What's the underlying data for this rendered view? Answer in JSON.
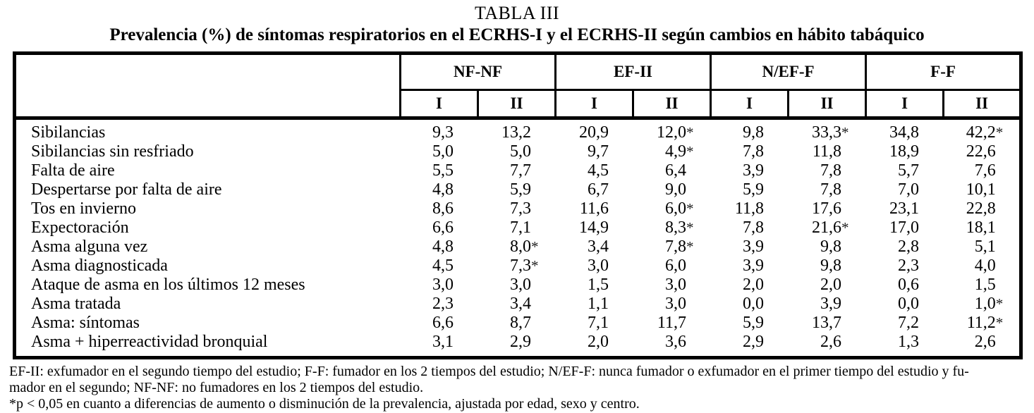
{
  "title": "TABLA III",
  "subtitle": "Prevalencia (%) de síntomas respiratorios en el ECRHS-I y el ECRHS-II según cambios en hábito tabáquico",
  "table": {
    "groups": [
      "NF-NF",
      "EF-II",
      "N/EF-F",
      "F-F"
    ],
    "subheaders": [
      "I",
      "II",
      "I",
      "II",
      "I",
      "II",
      "I",
      "II"
    ],
    "rows": [
      {
        "label": "Sibilancias",
        "values": [
          "9,3",
          "13,2",
          "20,9",
          "12,0*",
          "9,8",
          "33,3*",
          "34,8",
          "42,2*"
        ]
      },
      {
        "label": "Sibilancias sin resfriado",
        "values": [
          "5,0",
          "5,0",
          "9,7",
          "4,9*",
          "7,8",
          "11,8",
          "18,9",
          "22,6"
        ]
      },
      {
        "label": "Falta de aire",
        "values": [
          "5,5",
          "7,7",
          "4,5",
          "6,4",
          "3,9",
          "7,8",
          "5,7",
          "7,6"
        ]
      },
      {
        "label": "Despertarse por falta de aire",
        "values": [
          "4,8",
          "5,9",
          "6,7",
          "9,0",
          "5,9",
          "7,8",
          "7,0",
          "10,1"
        ]
      },
      {
        "label": "Tos en invierno",
        "values": [
          "8,6",
          "7,3",
          "11,6",
          "6,0*",
          "11,8",
          "17,6",
          "23,1",
          "22,8"
        ]
      },
      {
        "label": "Expectoración",
        "values": [
          "6,6",
          "7,1",
          "14,9",
          "8,3*",
          "7,8",
          "21,6*",
          "17,0",
          "18,1"
        ]
      },
      {
        "label": "Asma alguna vez",
        "values": [
          "4,8",
          "8,0*",
          "3,4",
          "7,8*",
          "3,9",
          "9,8",
          "2,8",
          "5,1"
        ]
      },
      {
        "label": "Asma diagnosticada",
        "values": [
          "4,5",
          "7,3*",
          "3,0",
          "6,0",
          "3,9",
          "9,8",
          "2,3",
          "4,0"
        ]
      },
      {
        "label": "Ataque de asma en los últimos 12 meses",
        "values": [
          "3,0",
          "3,0",
          "1,5",
          "3,0",
          "2,0",
          "2,0",
          "0,6",
          "1,5"
        ]
      },
      {
        "label": "Asma tratada",
        "values": [
          "2,3",
          "3,4",
          "1,1",
          "3,0",
          "0,0",
          "3,9",
          "0,0",
          "1,0*"
        ]
      },
      {
        "label": "Asma: síntomas",
        "values": [
          "6,6",
          "8,7",
          "7,1",
          "11,7",
          "5,9",
          "13,7",
          "7,2",
          "11,2*"
        ]
      },
      {
        "label": "Asma + hiperreactividad bronquial",
        "values": [
          "3,1",
          "2,9",
          "2,0",
          "3,6",
          "2,9",
          "2,6",
          "1,3",
          "2,6"
        ]
      }
    ]
  },
  "footnotes": [
    "EF-II: exfumador en el segundo tiempo del estudio; F-F: fumador en los 2 tiempos del estudio; N/EF-F: nunca fumador o exfumador en el primer tiempo del estudio y fu-",
    "mador en el segundo; NF-NF: no fumadores en los 2 tiempos del estudio.",
    "*p < 0,05 en cuanto a diferencias de aumento o disminución de la prevalencia, ajustada por edad, sexo y centro."
  ],
  "colors": {
    "text": "#000000",
    "background": "#ffffff",
    "border": "#000000"
  }
}
